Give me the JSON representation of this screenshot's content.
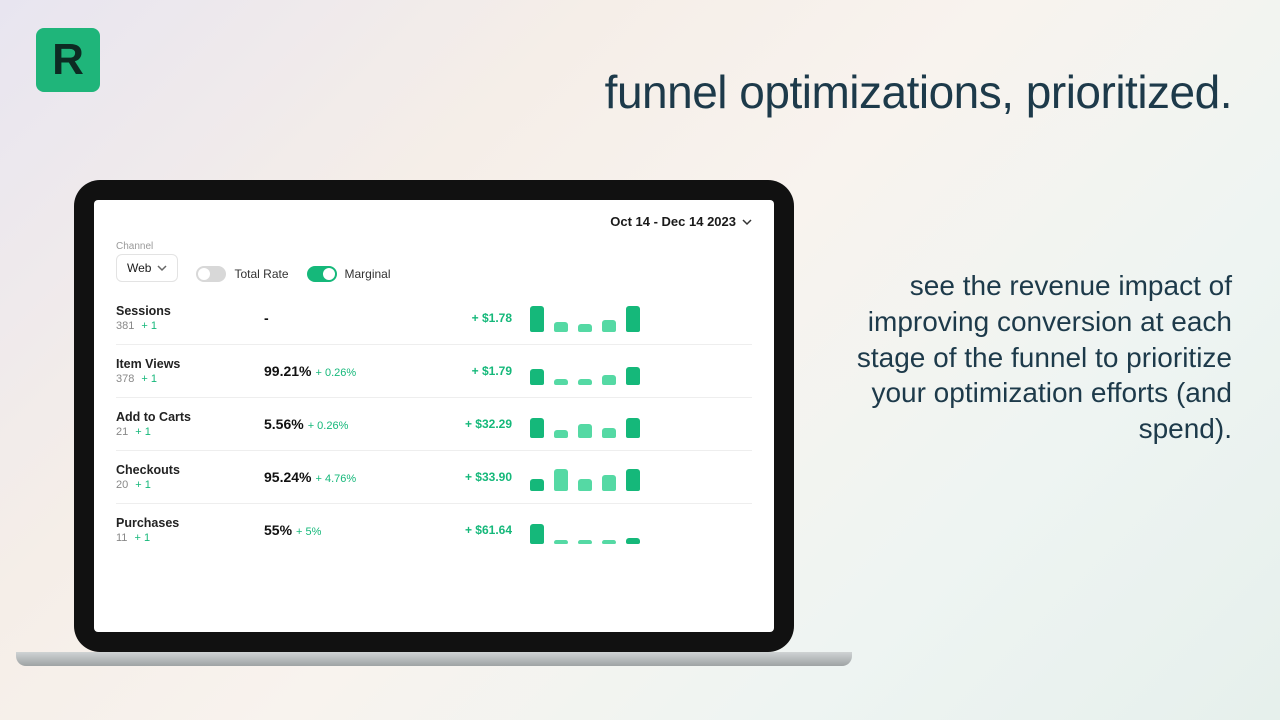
{
  "brand": {
    "letter": "R"
  },
  "headline": "funnel optimizations, prioritized.",
  "subhead": "see the revenue impact of improving conversion at each stage of the funnel to prioritize your optimization efforts (and spend).",
  "colors": {
    "accent": "#15b87a",
    "accent_light": "#55d9a4",
    "text_dark": "#1d3a4a",
    "logo_bg": "#1fb57a"
  },
  "app": {
    "date_range": "Oct 14 - Dec 14 2023",
    "channel_label": "Channel",
    "channel_value": "Web",
    "toggles": {
      "total_rate": {
        "label": "Total Rate",
        "on": false
      },
      "marginal": {
        "label": "Marginal",
        "on": true
      }
    },
    "rows": [
      {
        "name": "Sessions",
        "count": "381",
        "count_delta": "+ 1",
        "rate": "-",
        "rate_delta": "",
        "impact": "+ $1.78",
        "bars": [
          26,
          10,
          8,
          12,
          26
        ]
      },
      {
        "name": "Item Views",
        "count": "378",
        "count_delta": "+ 1",
        "rate": "99.21%",
        "rate_delta": "+ 0.26%",
        "impact": "+ $1.79",
        "bars": [
          16,
          6,
          6,
          10,
          18
        ]
      },
      {
        "name": "Add to Carts",
        "count": "21",
        "count_delta": "+ 1",
        "rate": "5.56%",
        "rate_delta": "+ 0.26%",
        "impact": "+ $32.29",
        "bars": [
          20,
          8,
          14,
          10,
          20
        ]
      },
      {
        "name": "Checkouts",
        "count": "20",
        "count_delta": "+ 1",
        "rate": "95.24%",
        "rate_delta": "+ 4.76%",
        "impact": "+ $33.90",
        "bars": [
          12,
          22,
          12,
          16,
          22
        ]
      },
      {
        "name": "Purchases",
        "count": "11",
        "count_delta": "+ 1",
        "rate": "55%",
        "rate_delta": "+ 5%",
        "impact": "+ $61.64",
        "bars": [
          20,
          4,
          4,
          4,
          6
        ]
      }
    ],
    "bar_colors": [
      "#15b87a",
      "#55d9a4",
      "#55d9a4",
      "#55d9a4",
      "#15b87a"
    ]
  }
}
